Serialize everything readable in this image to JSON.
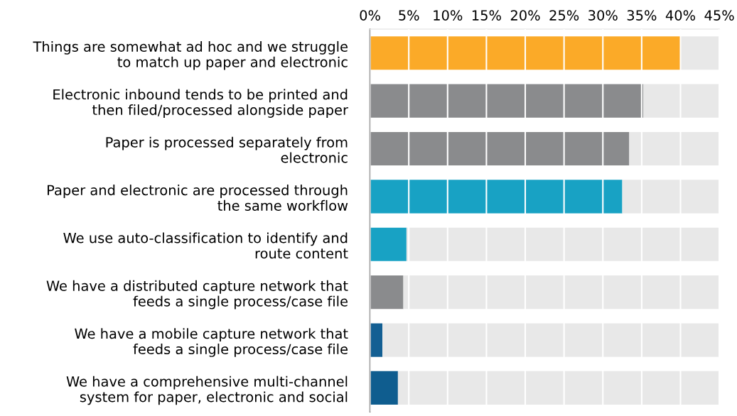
{
  "chart_data": {
    "type": "bar",
    "orientation": "horizontal",
    "stacked": true,
    "categories": [
      "Things are somewhat ad hoc and we struggle\nto match up paper and electronic",
      "Electronic inbound tends to be printed and\nthen filed/processed alongside paper",
      "Paper is processed separately from\nelectronic",
      "Paper and electronic are processed through\nthe same workflow",
      "We use auto-classification to identify and\nroute content",
      "We have a distributed capture network that\nfeeds a single process/case file",
      "We have a mobile capture network that\nfeeds a single process/case file",
      "We have a comprehensive multi-channel\nsystem for paper, electronic and social"
    ],
    "series": [
      {
        "colors": [
          "#fbaa28",
          "#8a8b8d",
          "#8a8b8d",
          "#18a2c4",
          "#18a2c4",
          "#8a8b8d",
          "#135f93",
          "#0f5d8f"
        ],
        "values": [
          40,
          35.2,
          33.4,
          32.5,
          4.7,
          4.3,
          1.6,
          3.6
        ]
      },
      {
        "color": "#e8e8e8",
        "values": [
          5,
          9.8,
          11.6,
          12.5,
          40.3,
          40.7,
          43.4,
          41.4
        ]
      }
    ],
    "xlim": [
      0,
      45
    ],
    "xticks": [
      {
        "value": 0,
        "label": "0%"
      },
      {
        "value": 5,
        "label": "5%"
      },
      {
        "value": 10,
        "label": "10%"
      },
      {
        "value": 15,
        "label": "15%"
      },
      {
        "value": 20,
        "label": "20%"
      },
      {
        "value": 25,
        "label": "25%"
      },
      {
        "value": 30,
        "label": "30%"
      },
      {
        "value": 35,
        "label": "35%"
      },
      {
        "value": 40,
        "label": "40%"
      },
      {
        "value": 45,
        "label": "45%"
      }
    ],
    "grid": "x"
  }
}
